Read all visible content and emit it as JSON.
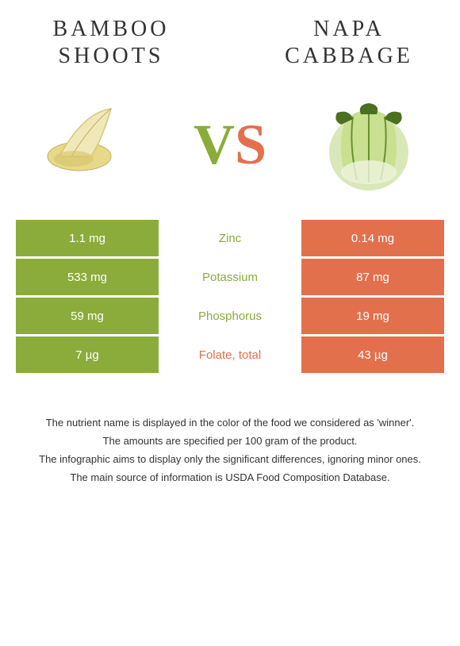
{
  "header": {
    "left_title": "BAMBOO SHOOTS",
    "right_title": "NAPA CABBAGE"
  },
  "vs": {
    "v": "V",
    "s": "S"
  },
  "colors": {
    "green": "#8bac3a",
    "orange": "#e3704d",
    "white": "#ffffff"
  },
  "nutrients": [
    {
      "name": "Zinc",
      "left": "1.1 mg",
      "right": "0.14 mg",
      "winner": "left"
    },
    {
      "name": "Potassium",
      "left": "533 mg",
      "right": "87 mg",
      "winner": "left"
    },
    {
      "name": "Phosphorus",
      "left": "59 mg",
      "right": "19 mg",
      "winner": "left"
    },
    {
      "name": "Folate, total",
      "left": "7 µg",
      "right": "43 µg",
      "winner": "right"
    }
  ],
  "footer": {
    "line1": "The nutrient name is displayed in the color of the food we considered as 'winner'.",
    "line2": "The amounts are specified per 100 gram of the product.",
    "line3": "The infographic aims to display only the significant differences, ignoring minor ones.",
    "line4": "The main source of information is USDA Food Composition Database."
  }
}
